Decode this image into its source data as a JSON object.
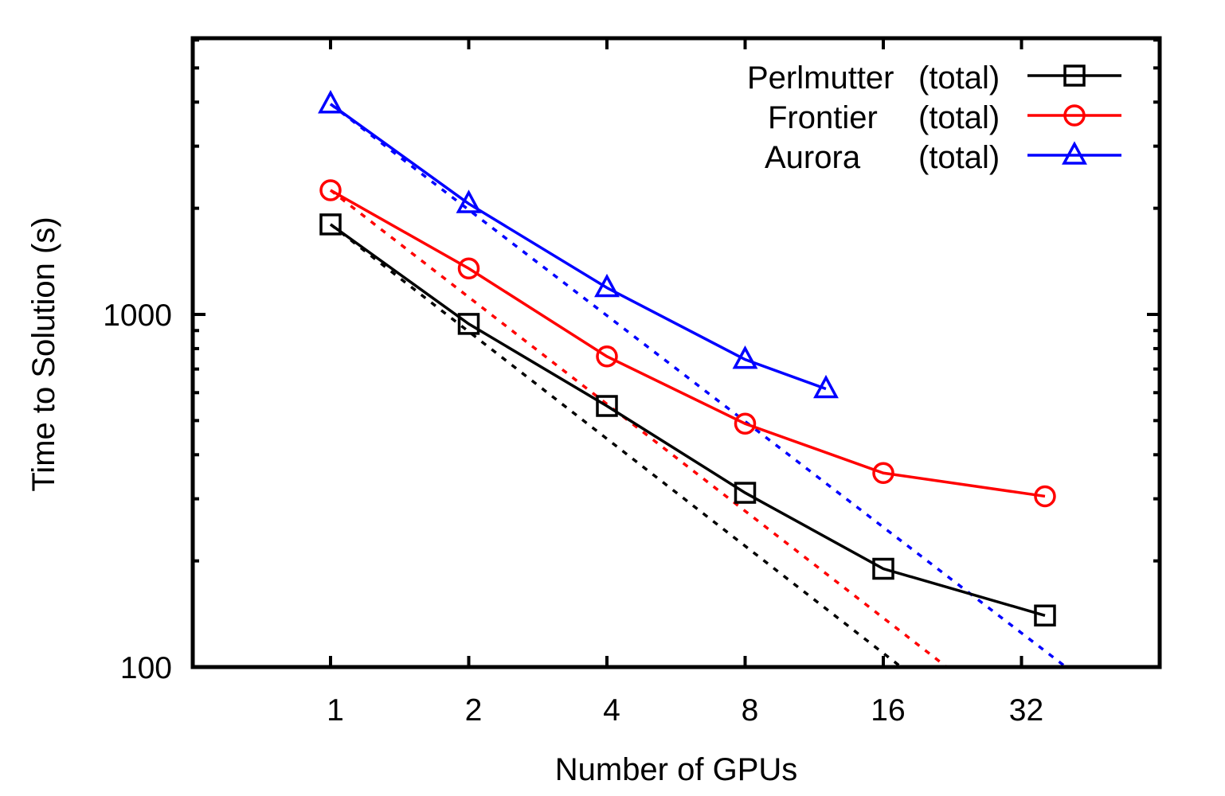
{
  "chart_data": {
    "type": "line",
    "title": "",
    "xlabel": "Number of GPUs",
    "ylabel": "Time to Solution (s)",
    "x_scale": "log2",
    "y_scale": "log10",
    "xlim": [
      0.5,
      64
    ],
    "ylim": [
      100,
      6000
    ],
    "x_ticks": [
      1,
      2,
      4,
      8,
      16,
      32
    ],
    "x_tick_labels": [
      "1",
      "2",
      "4",
      "8",
      "16",
      "32"
    ],
    "y_tick_labels": [
      {
        "value": 100,
        "label": "100"
      },
      {
        "value": 1000,
        "label": "1000"
      }
    ],
    "grid": false,
    "legend_position": "top-right",
    "series": [
      {
        "name": "Perlmutter (total)",
        "legend_name": "Perlmutter",
        "legend_suffix": "(total)",
        "color": "#000000",
        "marker": "square",
        "x": [
          1,
          2,
          4,
          8,
          16,
          36
        ],
        "y": [
          1800,
          940,
          550,
          312,
          190,
          140
        ]
      },
      {
        "name": "Frontier (total)",
        "legend_name": "Frontier",
        "legend_suffix": "(total)",
        "color": "#ff0000",
        "marker": "circle",
        "x": [
          1,
          2,
          4,
          8,
          16,
          36
        ],
        "y": [
          2250,
          1350,
          760,
          490,
          355,
          305
        ]
      },
      {
        "name": "Aurora (total)",
        "legend_name": "Aurora",
        "legend_suffix": "(total)",
        "color": "#0000ff",
        "marker": "triangle",
        "x": [
          1,
          2,
          4,
          8,
          12
        ],
        "y": [
          3950,
          2060,
          1190,
          745,
          615
        ]
      }
    ],
    "ideal_scaling_lines": [
      {
        "color": "#000000",
        "style": "dotted",
        "x": [
          1,
          17.5
        ],
        "y": [
          1800,
          100
        ]
      },
      {
        "color": "#ff0000",
        "style": "dotted",
        "x": [
          1,
          22
        ],
        "y": [
          2250,
          100
        ]
      },
      {
        "color": "#0000ff",
        "style": "dotted",
        "x": [
          1,
          40
        ],
        "y": [
          3950,
          100
        ]
      }
    ]
  }
}
